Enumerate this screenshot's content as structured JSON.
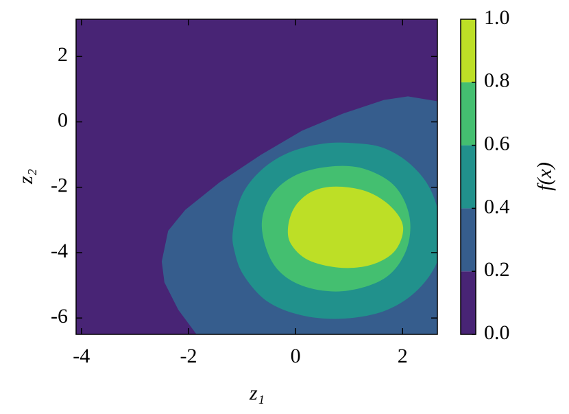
{
  "chart_data": {
    "type": "contourf",
    "xlabel": "z₁",
    "ylabel": "z₂",
    "xlim": [
      -4.1,
      2.65
    ],
    "ylim": [
      -6.5,
      3.14
    ],
    "xticks": [
      -4,
      -2,
      0,
      2
    ],
    "yticks": [
      2,
      0,
      -2,
      -4,
      -6
    ],
    "levels": [
      0,
      0.2,
      0.4,
      0.6,
      0.8,
      1.0
    ],
    "colors": [
      "#482475",
      "#365d8d",
      "#21918c",
      "#44bf70",
      "#bddf26"
    ],
    "contours": [
      {
        "level": 0.2,
        "open_to": "bottom-right",
        "x": [
          -1.85,
          -2.19,
          -2.45,
          -2.5,
          -2.38,
          -2.06,
          -1.42,
          -0.65,
          0.12,
          0.88,
          1.65,
          2.1,
          2.65
        ],
        "y": [
          -6.5,
          -5.75,
          -4.91,
          -4.27,
          -3.33,
          -2.69,
          -1.85,
          -1.01,
          -0.27,
          0.25,
          0.67,
          0.78,
          0.63
        ]
      },
      {
        "level": 0.4,
        "x": [
          -1.17,
          -1.01,
          -0.65,
          -0.14,
          0.5,
          1.08,
          1.65,
          2.17,
          2.55,
          2.74,
          2.62,
          2.23,
          1.65,
          0.88,
          0.12,
          -0.53,
          -0.97,
          -1.14
        ],
        "y": [
          -3.33,
          -2.27,
          -1.49,
          -0.95,
          -0.67,
          -0.65,
          -0.8,
          -1.33,
          -2.17,
          -3.43,
          -4.38,
          -5.22,
          -5.79,
          -6.02,
          -5.92,
          -5.49,
          -4.69,
          -3.96
        ]
      },
      {
        "level": 0.6,
        "x": [
          -0.63,
          -0.46,
          -0.01,
          0.63,
          1.27,
          1.85,
          2.13,
          2.06,
          1.65,
          0.88,
          0.12,
          -0.4
        ],
        "y": [
          -3.22,
          -2.27,
          -1.64,
          -1.37,
          -1.43,
          -1.96,
          -2.91,
          -3.96,
          -4.8,
          -5.18,
          -5.01,
          -4.38
        ]
      },
      {
        "level": 0.8,
        "x": [
          -0.14,
          -0.01,
          0.31,
          0.76,
          1.33,
          1.78,
          2.01,
          1.85,
          1.4,
          0.82,
          0.24,
          -0.08
        ],
        "y": [
          -3.22,
          -2.59,
          -2.13,
          -1.98,
          -2.13,
          -2.59,
          -3.22,
          -3.96,
          -4.38,
          -4.46,
          -4.23,
          -3.75
        ]
      }
    ],
    "colorbar": {
      "label": "f(x)",
      "ticks": [
        {
          "value": 0,
          "label": "0.0"
        },
        {
          "value": 0.2,
          "label": "0.2"
        },
        {
          "value": 0.4,
          "label": "0.4"
        },
        {
          "value": 0.6,
          "label": "0.6"
        },
        {
          "value": 0.8,
          "label": "0.8"
        },
        {
          "value": 1.0,
          "label": "1.0"
        }
      ]
    }
  }
}
